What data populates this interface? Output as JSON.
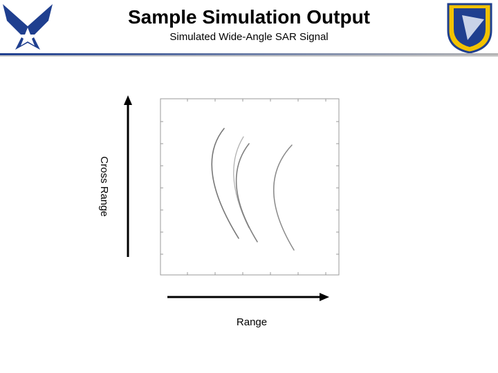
{
  "header": {
    "title": "Sample Simulation Output",
    "subtitle": "Simulated Wide-Angle SAR Signal"
  },
  "figure": {
    "y_label": "Cross Range",
    "x_label": "Range"
  }
}
